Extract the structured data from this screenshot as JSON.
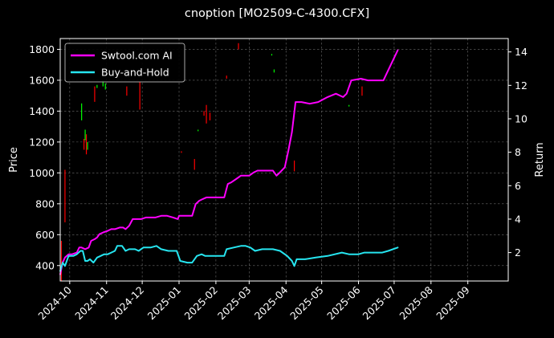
{
  "chart_data": {
    "type": "line",
    "title": "cnoption [MO2509-C-4300.CFX]",
    "ylabel": "Price",
    "ylabel_right": "Return",
    "ylim": [
      300,
      1870
    ],
    "ylim_right": [
      0.3,
      14.8
    ],
    "xlim": [
      "2024-09-23",
      "2025-10-05"
    ],
    "grid": true,
    "legend_position": "top-left",
    "y_ticks": [
      400,
      600,
      800,
      1000,
      1200,
      1400,
      1600,
      1800
    ],
    "y_ticks_right": [
      2,
      4,
      6,
      8,
      10,
      12,
      14
    ],
    "x_ticks": [
      {
        "date": "2024-10-01",
        "label": "2024-10"
      },
      {
        "date": "2024-11-01",
        "label": "2024-11"
      },
      {
        "date": "2024-12-01",
        "label": "2024-12"
      },
      {
        "date": "2025-01-01",
        "label": "2025-01"
      },
      {
        "date": "2025-02-01",
        "label": "2025-02"
      },
      {
        "date": "2025-03-01",
        "label": "2025-03"
      },
      {
        "date": "2025-04-01",
        "label": "2025-04"
      },
      {
        "date": "2025-05-01",
        "label": "2025-05"
      },
      {
        "date": "2025-06-01",
        "label": "2025-06"
      },
      {
        "date": "2025-07-01",
        "label": "2025-07"
      },
      {
        "date": "2025-08-01",
        "label": "2025-08"
      },
      {
        "date": "2025-09-01",
        "label": "2025-09"
      }
    ],
    "series": [
      {
        "name": "Swtool.com AI",
        "color": "#ff00ff",
        "axis": "right",
        "points": [
          [
            "2024-09-23",
            0.7
          ],
          [
            "2024-09-25",
            1.4
          ],
          [
            "2024-09-27",
            1.7
          ],
          [
            "2024-09-30",
            1.9
          ],
          [
            "2024-10-03",
            1.9
          ],
          [
            "2024-10-07",
            2.0
          ],
          [
            "2024-10-09",
            2.3
          ],
          [
            "2024-10-11",
            2.3
          ],
          [
            "2024-10-14",
            2.2
          ],
          [
            "2024-10-17",
            2.3
          ],
          [
            "2024-10-19",
            2.7
          ],
          [
            "2024-10-22",
            2.8
          ],
          [
            "2024-10-24",
            2.9
          ],
          [
            "2024-10-26",
            3.1
          ],
          [
            "2024-10-29",
            3.2
          ],
          [
            "2024-11-02",
            3.3
          ],
          [
            "2024-11-05",
            3.4
          ],
          [
            "2024-11-08",
            3.4
          ],
          [
            "2024-11-12",
            3.5
          ],
          [
            "2024-11-15",
            3.5
          ],
          [
            "2024-11-17",
            3.4
          ],
          [
            "2024-11-20",
            3.6
          ],
          [
            "2024-11-23",
            4.0
          ],
          [
            "2024-11-27",
            4.0
          ],
          [
            "2024-11-30",
            4.0
          ],
          [
            "2024-12-04",
            4.1
          ],
          [
            "2024-12-08",
            4.1
          ],
          [
            "2024-12-12",
            4.1
          ],
          [
            "2024-12-17",
            4.2
          ],
          [
            "2024-12-22",
            4.2
          ],
          [
            "2024-12-27",
            4.1
          ],
          [
            "2024-12-31",
            4.0
          ],
          [
            "2025-01-01",
            4.2
          ],
          [
            "2025-01-06",
            4.2
          ],
          [
            "2025-01-12",
            4.2
          ],
          [
            "2025-01-15",
            4.9
          ],
          [
            "2025-01-18",
            5.1
          ],
          [
            "2025-01-21",
            5.2
          ],
          [
            "2025-01-24",
            5.3
          ],
          [
            "2025-01-27",
            5.3
          ],
          [
            "2025-02-03",
            5.3
          ],
          [
            "2025-02-08",
            5.3
          ],
          [
            "2025-02-11",
            6.1
          ],
          [
            "2025-02-14",
            6.2
          ],
          [
            "2025-02-18",
            6.4
          ],
          [
            "2025-02-22",
            6.6
          ],
          [
            "2025-02-26",
            6.6
          ],
          [
            "2025-03-01",
            6.6
          ],
          [
            "2025-03-05",
            6.8
          ],
          [
            "2025-03-08",
            6.9
          ],
          [
            "2025-03-12",
            6.9
          ],
          [
            "2025-03-18",
            6.9
          ],
          [
            "2025-03-21",
            6.9
          ],
          [
            "2025-03-24",
            6.6
          ],
          [
            "2025-03-27",
            6.8
          ],
          [
            "2025-03-31",
            7.1
          ],
          [
            "2025-04-03",
            8.1
          ],
          [
            "2025-04-06",
            9.2
          ],
          [
            "2025-04-09",
            11.0
          ],
          [
            "2025-04-14",
            11.0
          ],
          [
            "2025-04-21",
            10.9
          ],
          [
            "2025-04-28",
            11.0
          ],
          [
            "2025-05-06",
            11.3
          ],
          [
            "2025-05-13",
            11.5
          ],
          [
            "2025-05-19",
            11.3
          ],
          [
            "2025-05-22",
            11.5
          ],
          [
            "2025-05-26",
            12.3
          ],
          [
            "2025-06-03",
            12.4
          ],
          [
            "2025-06-09",
            12.3
          ],
          [
            "2025-06-16",
            12.3
          ],
          [
            "2025-06-22",
            12.3
          ],
          [
            "2025-06-24",
            12.6
          ],
          [
            "2025-07-04",
            14.1
          ]
        ]
      },
      {
        "name": "Buy-and-Hold",
        "color": "#26e5f0",
        "axis": "right",
        "points": [
          [
            "2024-09-23",
            0.9
          ],
          [
            "2024-09-25",
            1.4
          ],
          [
            "2024-09-27",
            1.2
          ],
          [
            "2024-09-30",
            1.8
          ],
          [
            "2024-10-04",
            1.8
          ],
          [
            "2024-10-07",
            1.9
          ],
          [
            "2024-10-10",
            2.1
          ],
          [
            "2024-10-12",
            2.1
          ],
          [
            "2024-10-14",
            1.5
          ],
          [
            "2024-10-16",
            1.5
          ],
          [
            "2024-10-18",
            1.6
          ],
          [
            "2024-10-21",
            1.4
          ],
          [
            "2024-10-24",
            1.7
          ],
          [
            "2024-10-27",
            1.8
          ],
          [
            "2024-10-30",
            1.9
          ],
          [
            "2024-11-02",
            1.9
          ],
          [
            "2024-11-05",
            2.0
          ],
          [
            "2024-11-08",
            2.1
          ],
          [
            "2024-11-10",
            2.4
          ],
          [
            "2024-11-14",
            2.4
          ],
          [
            "2024-11-17",
            2.1
          ],
          [
            "2024-11-20",
            2.2
          ],
          [
            "2024-11-25",
            2.2
          ],
          [
            "2024-11-28",
            2.1
          ],
          [
            "2024-12-02",
            2.3
          ],
          [
            "2024-12-08",
            2.3
          ],
          [
            "2024-12-13",
            2.4
          ],
          [
            "2024-12-17",
            2.2
          ],
          [
            "2024-12-23",
            2.1
          ],
          [
            "2024-12-30",
            2.1
          ],
          [
            "2025-01-02",
            1.5
          ],
          [
            "2025-01-08",
            1.4
          ],
          [
            "2025-01-12",
            1.4
          ],
          [
            "2025-01-16",
            1.8
          ],
          [
            "2025-01-20",
            1.9
          ],
          [
            "2025-01-23",
            1.8
          ],
          [
            "2025-01-27",
            1.8
          ],
          [
            "2025-02-03",
            1.8
          ],
          [
            "2025-02-08",
            1.8
          ],
          [
            "2025-02-10",
            2.2
          ],
          [
            "2025-02-16",
            2.3
          ],
          [
            "2025-02-22",
            2.4
          ],
          [
            "2025-02-26",
            2.4
          ],
          [
            "2025-03-02",
            2.3
          ],
          [
            "2025-03-06",
            2.1
          ],
          [
            "2025-03-12",
            2.2
          ],
          [
            "2025-03-18",
            2.2
          ],
          [
            "2025-03-21",
            2.2
          ],
          [
            "2025-03-27",
            2.1
          ],
          [
            "2025-04-02",
            1.8
          ],
          [
            "2025-04-06",
            1.5
          ],
          [
            "2025-04-08",
            1.2
          ],
          [
            "2025-04-10",
            1.6
          ],
          [
            "2025-04-17",
            1.6
          ],
          [
            "2025-04-26",
            1.7
          ],
          [
            "2025-05-06",
            1.8
          ],
          [
            "2025-05-18",
            2.0
          ],
          [
            "2025-05-24",
            1.9
          ],
          [
            "2025-06-01",
            1.9
          ],
          [
            "2025-06-06",
            2.0
          ],
          [
            "2025-06-13",
            2.0
          ],
          [
            "2025-06-19",
            2.0
          ],
          [
            "2025-06-21",
            2.0
          ],
          [
            "2025-06-26",
            2.1
          ],
          [
            "2025-07-04",
            2.3
          ]
        ]
      }
    ],
    "candles": [
      {
        "date": "2024-09-24",
        "low": 300,
        "high": 560,
        "color": "#ff0000"
      },
      {
        "date": "2024-09-27",
        "low": 680,
        "high": 1020,
        "color": "#ff0000"
      },
      {
        "date": "2024-10-11",
        "low": 1340,
        "high": 1450,
        "color": "#00ff00"
      },
      {
        "date": "2024-10-13",
        "low": 1150,
        "high": 1220,
        "color": "#ff0000"
      },
      {
        "date": "2024-10-14",
        "low": 1210,
        "high": 1280,
        "color": "#00ff00"
      },
      {
        "date": "2024-10-15",
        "low": 1120,
        "high": 1250,
        "color": "#ff0000"
      },
      {
        "date": "2024-10-16",
        "low": 1150,
        "high": 1200,
        "color": "#00ff00"
      },
      {
        "date": "2024-10-22",
        "low": 1460,
        "high": 1560,
        "color": "#ff0000"
      },
      {
        "date": "2024-10-24",
        "low": 1550,
        "high": 1570,
        "color": "#00ff00"
      },
      {
        "date": "2024-10-29",
        "low": 1560,
        "high": 1600,
        "color": "#00ff00"
      },
      {
        "date": "2024-10-31",
        "low": 1540,
        "high": 1580,
        "color": "#00ff00"
      },
      {
        "date": "2024-11-18",
        "low": 1500,
        "high": 1560,
        "color": "#ff0000"
      },
      {
        "date": "2024-11-29",
        "low": 1410,
        "high": 1590,
        "color": "#ff0000"
      },
      {
        "date": "2025-01-03",
        "low": 1130,
        "high": 1140,
        "color": "#ff0000"
      },
      {
        "date": "2025-01-14",
        "low": 1020,
        "high": 1090,
        "color": "#ff0000"
      },
      {
        "date": "2025-01-17",
        "low": 1270,
        "high": 1280,
        "color": "#00ff00"
      },
      {
        "date": "2025-01-22",
        "low": 1370,
        "high": 1400,
        "color": "#ff0000"
      },
      {
        "date": "2025-01-24",
        "low": 1320,
        "high": 1440,
        "color": "#ff0000"
      },
      {
        "date": "2025-01-27",
        "low": 1340,
        "high": 1390,
        "color": "#ff0000"
      },
      {
        "date": "2025-02-10",
        "low": 1610,
        "high": 1630,
        "color": "#ff0000"
      },
      {
        "date": "2025-02-20",
        "low": 1800,
        "high": 1840,
        "color": "#ff0000"
      },
      {
        "date": "2025-03-20",
        "low": 1760,
        "high": 1770,
        "color": "#00ff00"
      },
      {
        "date": "2025-03-22",
        "low": 1650,
        "high": 1670,
        "color": "#00ff00"
      },
      {
        "date": "2025-04-08",
        "low": 1010,
        "high": 1080,
        "color": "#ff0000"
      },
      {
        "date": "2025-05-24",
        "low": 1430,
        "high": 1440,
        "color": "#00ff00"
      },
      {
        "date": "2025-06-04",
        "low": 1500,
        "high": 1560,
        "color": "#ff0000"
      }
    ]
  }
}
